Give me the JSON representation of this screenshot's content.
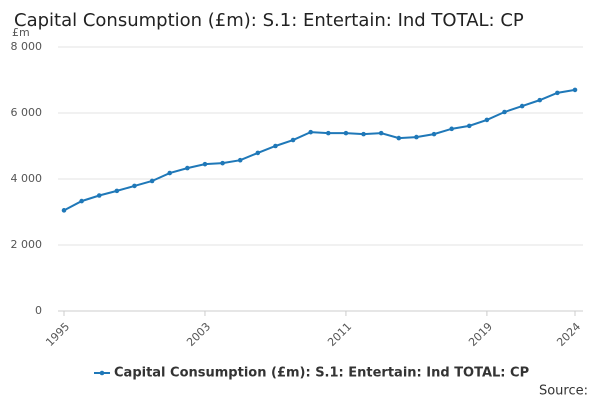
{
  "chart_data": {
    "type": "line",
    "title": "Capital Consumption (£m): S.1: Entertain: Ind TOTAL: CP",
    "y_unit": "£m",
    "source": "Source:",
    "x": [
      1995,
      1996,
      1997,
      1998,
      1999,
      2000,
      2001,
      2002,
      2003,
      2004,
      2005,
      2006,
      2007,
      2008,
      2009,
      2010,
      2011,
      2012,
      2013,
      2014,
      2015,
      2016,
      2017,
      2018,
      2019,
      2020,
      2021,
      2022,
      2023,
      2024
    ],
    "series": [
      {
        "name": "Capital Consumption (£m): S.1: Entertain: Ind TOTAL: CP",
        "color": "#1f78b8",
        "values": [
          3050,
          3330,
          3500,
          3640,
          3790,
          3940,
          4180,
          4330,
          4450,
          4480,
          4570,
          4790,
          5000,
          5180,
          5420,
          5390,
          5390,
          5360,
          5390,
          5240,
          5270,
          5360,
          5520,
          5610,
          5790,
          6030,
          6210,
          6390,
          6610,
          6700
        ]
      }
    ],
    "xlim": [
      1995,
      2024
    ],
    "xticks": [
      1995,
      2003,
      2011,
      2019,
      2024
    ],
    "ylim": [
      0,
      8000
    ],
    "yticks": [
      0,
      {
        "value": 2000,
        "label": "2 000"
      },
      {
        "value": 4000,
        "label": "4 000"
      },
      {
        "value": 6000,
        "label": "6 000"
      },
      {
        "value": 8000,
        "label": "8 000"
      }
    ],
    "grid": true,
    "legend": "bottom"
  }
}
